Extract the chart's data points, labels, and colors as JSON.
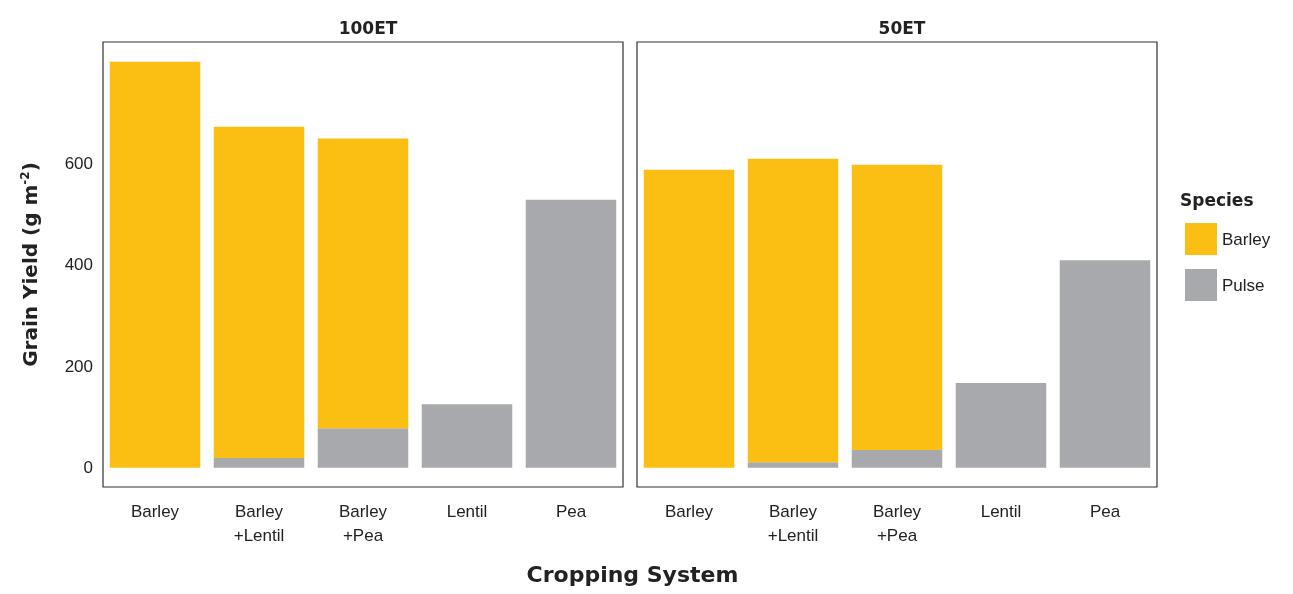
{
  "chart_data": [
    {
      "type": "bar",
      "title": "100ET",
      "ylabel": "Grain Yield (g m$^{-2}$)",
      "xlabel": "Cropping System",
      "categories": [
        "Barley",
        "Barley\n+Lentil",
        "Barley\n+Pea",
        "Lentil",
        "Pea"
      ],
      "stacked": true,
      "series": [
        {
          "color": "#a8a9ad",
          "values": [
            0,
            19,
            78,
            125,
            528
          ]
        },
        {
          "color": "#fbbf13",
          "values": [
            800,
            653,
            571,
            0,
            0
          ]
        }
      ],
      "ylim": [
        -38,
        839
      ],
      "yticks": [
        0,
        200,
        400,
        600
      ],
      "grid": false,
      "legend": false
    },
    {
      "type": "bar",
      "title": "50ET",
      "categories": [
        "Barley",
        "Barley\n+Lentil",
        "Barley\n+Pea",
        "Lentil",
        "Pea"
      ],
      "stacked": true,
      "series": [
        {
          "name": "Pulse",
          "color": "#a8a9ad",
          "values": [
            0,
            11,
            35,
            167,
            409
          ]
        },
        {
          "name": "Barley",
          "color": "#fbbf13",
          "values": [
            587,
            598,
            562,
            0,
            0
          ]
        }
      ],
      "ylim": [
        -38,
        839
      ],
      "yticks": [
        0,
        200,
        400,
        600
      ],
      "grid": false,
      "legend": "right",
      "legend_title": "Species",
      "tick_labels": "x"
    }
  ]
}
